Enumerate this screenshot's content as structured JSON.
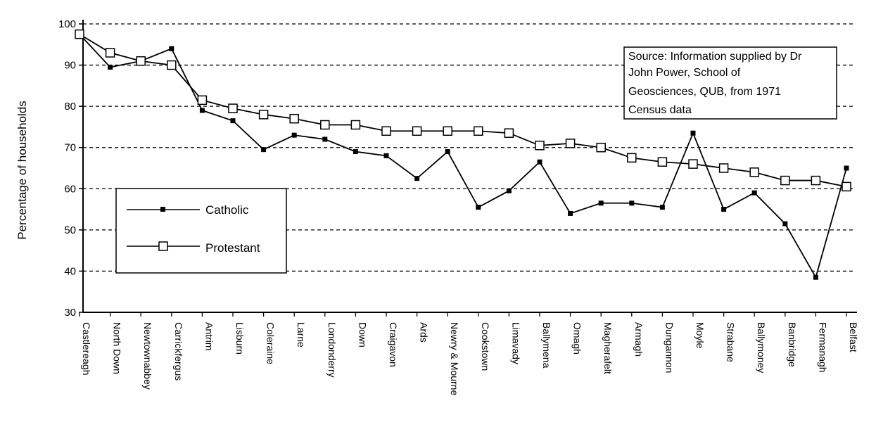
{
  "chart_data": {
    "type": "line",
    "title": "",
    "xlabel": "",
    "ylabel": "Percentage of households",
    "ylim": [
      30,
      100
    ],
    "yticks": [
      30,
      40,
      50,
      60,
      70,
      80,
      90,
      100
    ],
    "grid": true,
    "legend_position": "left",
    "categories": [
      "Castlereagh",
      "North Down",
      "Newtownabbey",
      "Carrickfergus",
      "Antrim",
      "Lisburn",
      "Coleraine",
      "Larne",
      "Londonderry",
      "Down",
      "Craigavon",
      "Ards",
      "Newry & Mourne",
      "Cookstown",
      "Limavady",
      "Ballymena",
      "Omagh",
      "Magherafelt",
      "Armagh",
      "Dungannon",
      "Moyle",
      "Strabane",
      "Ballymoney",
      "Banbridge",
      "Fermanagh",
      "Belfast"
    ],
    "series": [
      {
        "name": "Catholic",
        "marker": "filled-square",
        "values": [
          97.5,
          89.5,
          91,
          94,
          79,
          76.5,
          69.5,
          73,
          72,
          69,
          68,
          62.5,
          69,
          55.5,
          59.5,
          66.5,
          54,
          56.5,
          56.5,
          55.5,
          73.5,
          55,
          59,
          51.5,
          38.5,
          65
        ]
      },
      {
        "name": "Protestant",
        "marker": "open-square",
        "values": [
          97.5,
          93,
          91,
          90,
          81.5,
          79.5,
          78,
          77,
          75.5,
          75.5,
          74,
          74,
          74,
          74,
          73.5,
          70.5,
          71,
          70,
          67.5,
          66.5,
          66,
          65,
          64,
          62,
          62,
          60.5
        ]
      }
    ],
    "annotation": "Source:  Information supplied by Dr John Power, School of Geosciences, QUB, from 1971 Census data",
    "annotation_lines": [
      "Source:  Information supplied by Dr",
      "John Power, School of",
      "Geosciences, QUB, from 1971",
      "Census data"
    ]
  }
}
